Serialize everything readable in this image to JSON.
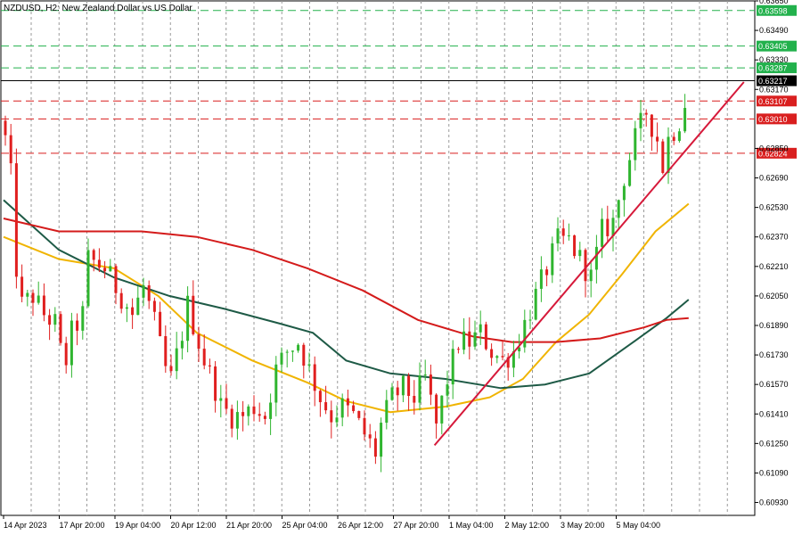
{
  "chart_data": {
    "type": "candlestick",
    "title": "NZDUSD, H2:  New Zealand Dollar vs US Dollar",
    "symbol": "NZDUSD",
    "timeframe": "H2",
    "description": "New Zealand Dollar vs US Dollar",
    "ylim": [
      0.6086,
      0.6365
    ],
    "y_ticks": [
      "0.63650",
      "0.63490",
      "0.63330",
      "0.63170",
      "0.62850",
      "0.62690",
      "0.62530",
      "0.62370",
      "0.62210",
      "0.62050",
      "0.61890",
      "0.61730",
      "0.61570",
      "0.61410",
      "0.61250",
      "0.61090",
      "0.60930"
    ],
    "x_ticks": [
      "14 Apr 2023",
      "17 Apr 20:00",
      "19 Apr 04:00",
      "20 Apr 12:00",
      "21 Apr 20:00",
      "25 Apr 04:00",
      "26 Apr 12:00",
      "27 Apr 20:00",
      "1 May 04:00",
      "2 May 12:00",
      "3 May 20:00",
      "5 May 04:00"
    ],
    "bar_count": 124,
    "current_price": {
      "value": 0.63217,
      "label": "0.63217"
    },
    "levels": [
      {
        "value": 0.63598,
        "label": "0.63598",
        "kind": "resistance",
        "color": "#22b14c"
      },
      {
        "value": 0.63405,
        "label": "0.63405",
        "kind": "resistance",
        "color": "#22b14c"
      },
      {
        "value": 0.63287,
        "label": "0.63287",
        "kind": "resistance",
        "color": "#22b14c"
      },
      {
        "value": 0.63107,
        "label": "0.63107",
        "kind": "support",
        "color": "#d91f1f"
      },
      {
        "value": 0.6301,
        "label": "0.63010",
        "kind": "support",
        "color": "#d91f1f"
      },
      {
        "value": 0.62824,
        "label": "0.62824",
        "kind": "support",
        "color": "#d91f1f"
      }
    ],
    "trendline": {
      "start": {
        "bar": 78,
        "price": 0.6124
      },
      "end": {
        "bar": 134,
        "price": 0.6321
      },
      "color": "#d6193a"
    },
    "close_path": [
      [
        0,
        0.629
      ],
      [
        1,
        0.627
      ],
      [
        2,
        0.622
      ],
      [
        3,
        0.62
      ],
      [
        5,
        0.6205
      ],
      [
        7,
        0.6195
      ],
      [
        9,
        0.619
      ],
      [
        10,
        0.6175
      ],
      [
        11,
        0.617
      ],
      [
        12,
        0.6185
      ],
      [
        14,
        0.6195
      ],
      [
        15,
        0.6225
      ],
      [
        18,
        0.622
      ],
      [
        21,
        0.6205
      ],
      [
        23,
        0.6195
      ],
      [
        25,
        0.621
      ],
      [
        27,
        0.619
      ],
      [
        29,
        0.6165
      ],
      [
        30,
        0.616
      ],
      [
        32,
        0.6185
      ],
      [
        33,
        0.62
      ],
      [
        34,
        0.619
      ],
      [
        36,
        0.617
      ],
      [
        38,
        0.6155
      ],
      [
        39,
        0.6145
      ],
      [
        41,
        0.614
      ],
      [
        43,
        0.614
      ],
      [
        45,
        0.6145
      ],
      [
        47,
        0.614
      ],
      [
        49,
        0.6165
      ],
      [
        51,
        0.6175
      ],
      [
        53,
        0.618
      ],
      [
        55,
        0.6165
      ],
      [
        57,
        0.615
      ],
      [
        59,
        0.614
      ],
      [
        61,
        0.6145
      ],
      [
        63,
        0.614
      ],
      [
        65,
        0.613
      ],
      [
        67,
        0.612
      ],
      [
        68,
        0.6135
      ],
      [
        70,
        0.615
      ],
      [
        72,
        0.6155
      ],
      [
        74,
        0.615
      ],
      [
        76,
        0.616
      ],
      [
        78,
        0.6135
      ],
      [
        80,
        0.616
      ],
      [
        82,
        0.618
      ],
      [
        84,
        0.618
      ],
      [
        86,
        0.6185
      ],
      [
        88,
        0.6175
      ],
      [
        90,
        0.617
      ],
      [
        92,
        0.6175
      ],
      [
        94,
        0.619
      ],
      [
        96,
        0.6205
      ],
      [
        98,
        0.622
      ],
      [
        100,
        0.6235
      ],
      [
        102,
        0.6235
      ],
      [
        104,
        0.6225
      ],
      [
        106,
        0.6215
      ],
      [
        108,
        0.624
      ],
      [
        110,
        0.6245
      ],
      [
        112,
        0.627
      ],
      [
        114,
        0.629
      ],
      [
        116,
        0.6305
      ],
      [
        118,
        0.629
      ],
      [
        119,
        0.6275
      ],
      [
        120,
        0.629
      ],
      [
        122,
        0.63
      ],
      [
        123,
        0.631
      ],
      [
        124,
        0.6325
      ]
    ],
    "series": [
      {
        "name": "",
        "role": "moving-average-fast",
        "color": "#f0b400",
        "points": [
          [
            0,
            0.6237
          ],
          [
            10,
            0.6225
          ],
          [
            20,
            0.622
          ],
          [
            28,
            0.6205
          ],
          [
            35,
            0.6185
          ],
          [
            45,
            0.617
          ],
          [
            55,
            0.6158
          ],
          [
            62,
            0.6148
          ],
          [
            70,
            0.6142
          ],
          [
            80,
            0.6145
          ],
          [
            88,
            0.615
          ],
          [
            94,
            0.616
          ],
          [
            100,
            0.618
          ],
          [
            106,
            0.6195
          ],
          [
            112,
            0.6217
          ],
          [
            118,
            0.624
          ],
          [
            124,
            0.6255
          ]
        ]
      },
      {
        "name": "",
        "role": "moving-average-mid",
        "color": "#1e5a46",
        "points": [
          [
            0,
            0.6257
          ],
          [
            10,
            0.623
          ],
          [
            20,
            0.6215
          ],
          [
            30,
            0.6205
          ],
          [
            40,
            0.6198
          ],
          [
            50,
            0.619
          ],
          [
            56,
            0.6185
          ],
          [
            62,
            0.617
          ],
          [
            70,
            0.6163
          ],
          [
            80,
            0.616
          ],
          [
            90,
            0.6155
          ],
          [
            98,
            0.6157
          ],
          [
            106,
            0.6163
          ],
          [
            114,
            0.618
          ],
          [
            120,
            0.6193
          ],
          [
            124,
            0.6203
          ]
        ]
      },
      {
        "name": "",
        "role": "moving-average-slow",
        "color": "#d41b1b",
        "points": [
          [
            0,
            0.6247
          ],
          [
            10,
            0.624
          ],
          [
            25,
            0.624
          ],
          [
            35,
            0.6237
          ],
          [
            45,
            0.623
          ],
          [
            55,
            0.622
          ],
          [
            65,
            0.6208
          ],
          [
            75,
            0.6192
          ],
          [
            85,
            0.6183
          ],
          [
            92,
            0.618
          ],
          [
            100,
            0.618
          ],
          [
            108,
            0.6182
          ],
          [
            116,
            0.6188
          ],
          [
            120,
            0.6192
          ],
          [
            124,
            0.6193
          ]
        ]
      }
    ]
  }
}
